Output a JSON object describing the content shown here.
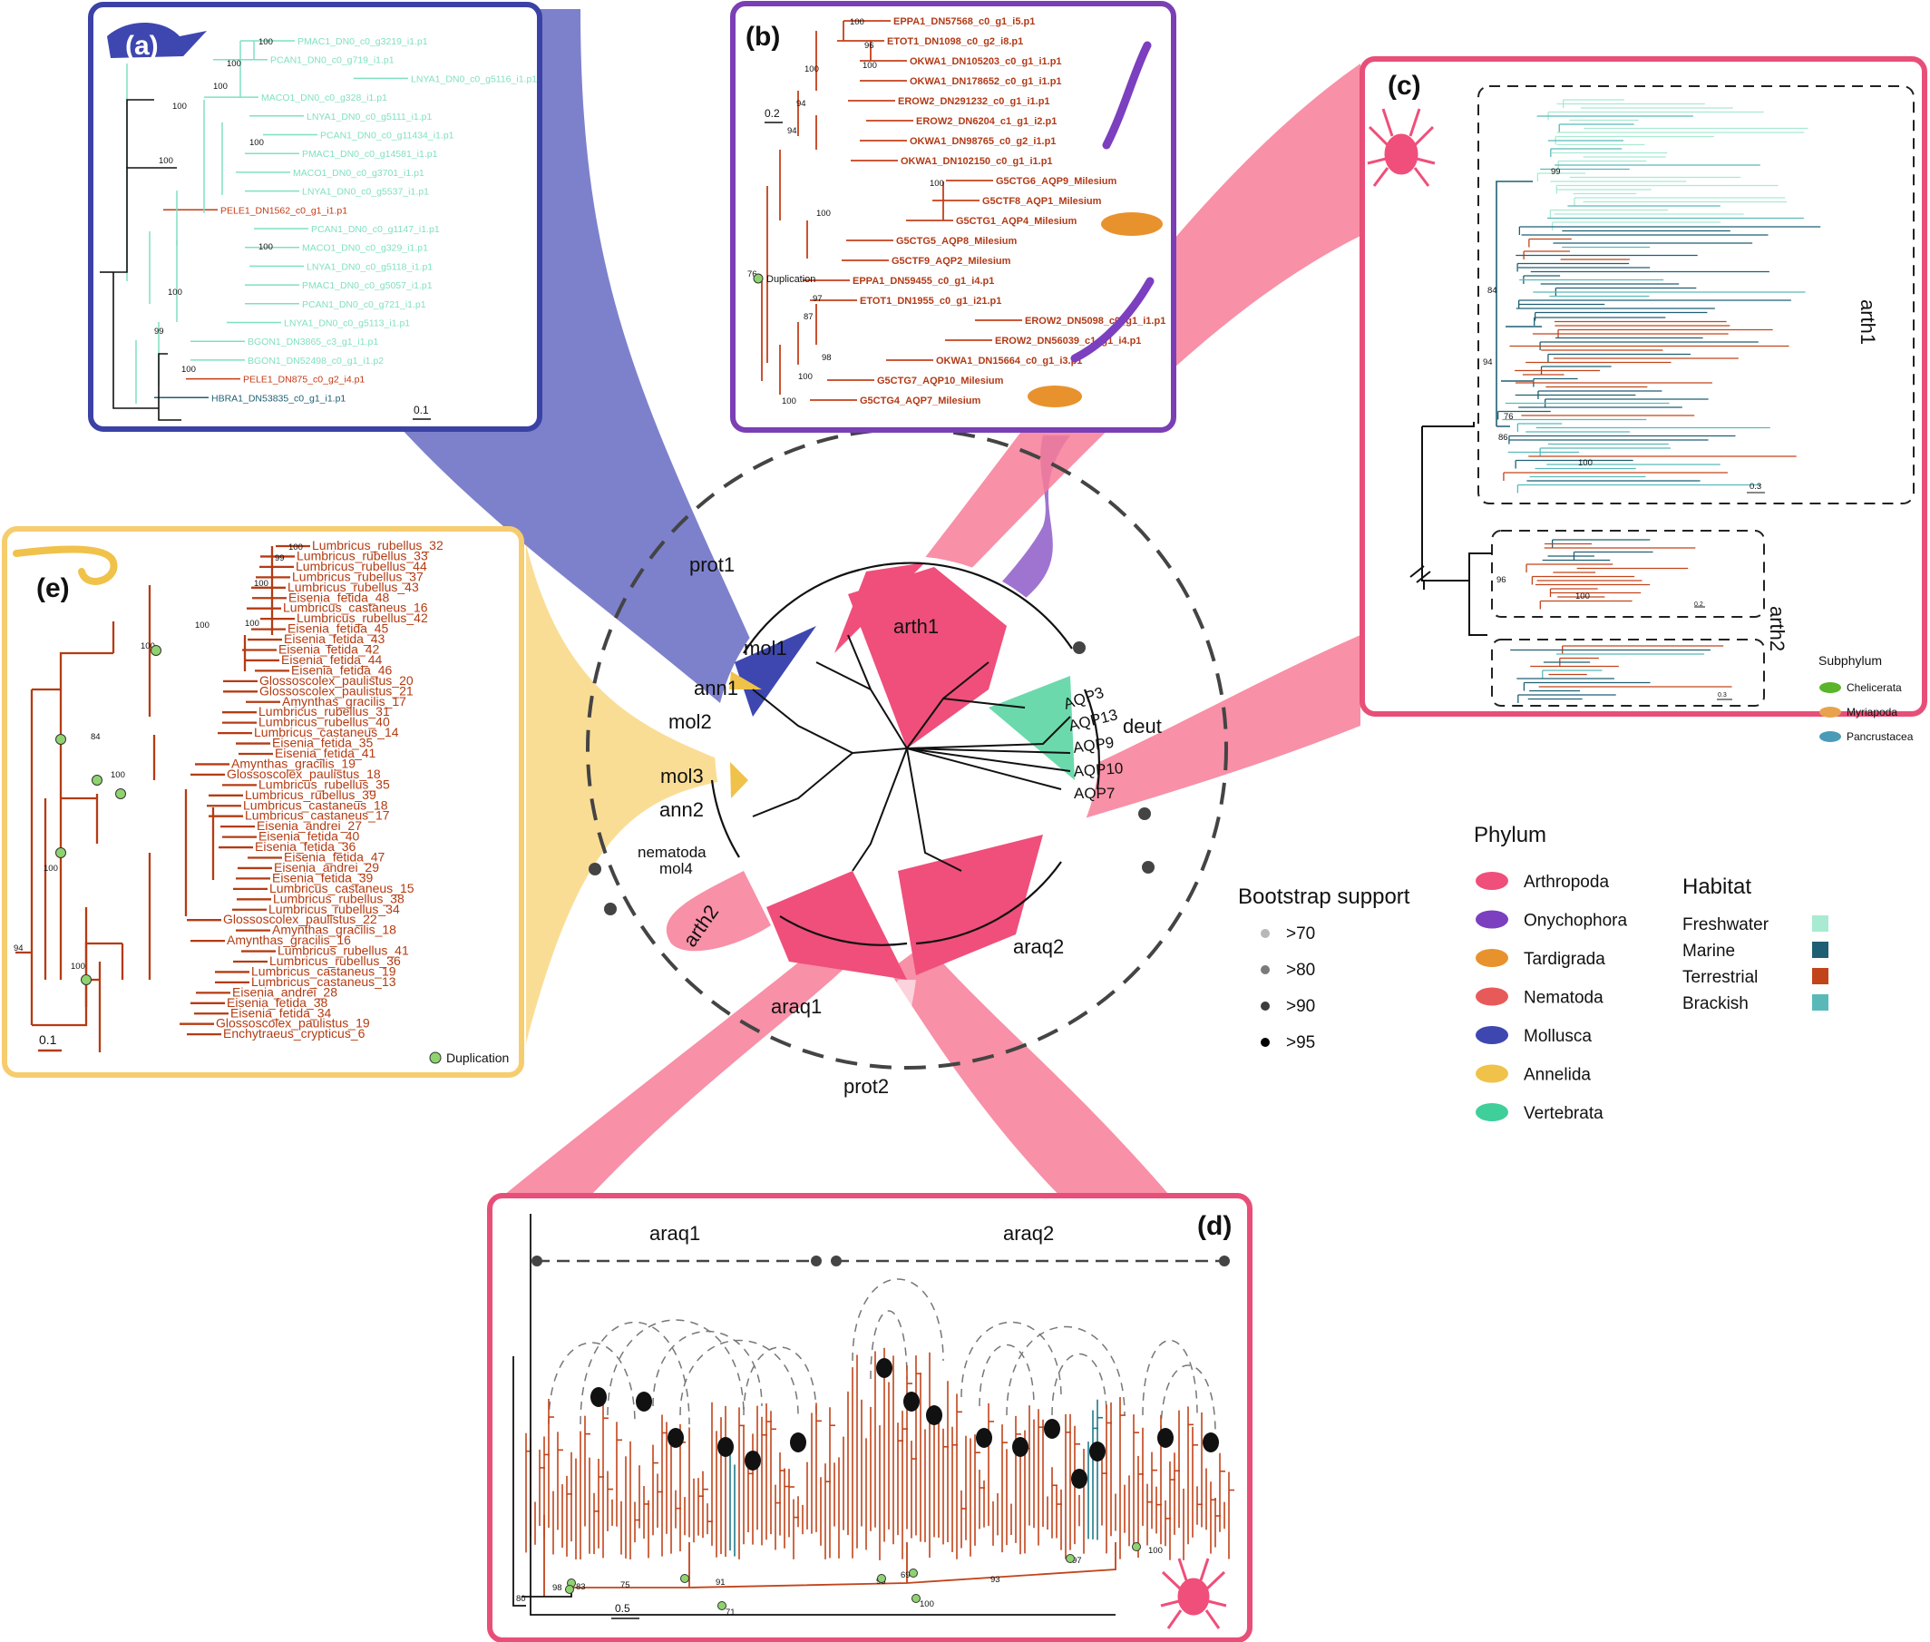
{
  "panels": {
    "a": {
      "tag": "(a)",
      "scale": "0.1",
      "tips": [
        "PMAC1_DN0_c0_g3219_i1.p1",
        "PCAN1_DN0_c0_g719_i1.p1",
        "LNYA1_DN0_c0_g5116_i1.p1",
        "MACO1_DN0_c0_g328_i1.p1",
        "LNYA1_DN0_c0_g5111_i1.p1",
        "PCAN1_DN0_c0_g11434_i1.p1",
        "PMAC1_DN0_c0_g14581_i1.p1",
        "MACO1_DN0_c0_g3701_i1.p1",
        "LNYA1_DN0_c0_g5537_i1.p1",
        "PELE1_DN1562_c0_g1_i1.p1",
        "PCAN1_DN0_c0_g1147_i1.p1",
        "MACO1_DN0_c0_g329_i1.p1",
        "LNYA1_DN0_c0_g5118_i1.p1",
        "PMAC1_DN0_c0_g5057_i1.p1",
        "PCAN1_DN0_c0_g721_i1.p1",
        "LNYA1_DN0_c0_g5113_i1.p1",
        "BGON1_DN3865_c3_g1_i1.p1",
        "BGON1_DN52498_c0_g1_i1.p2",
        "PELE1_DN875_c0_g2_i4.p1",
        "HBRA1_DN53835_c0_g1_i1.p1"
      ],
      "supports": [
        "100",
        "100",
        "100",
        "100",
        "100",
        "100",
        "100",
        "100",
        "99",
        "100"
      ]
    },
    "b": {
      "tag": "(b)",
      "scale": "0.2",
      "dup_label": "Duplication",
      "tips": [
        "EPPA1_DN57568_c0_g1_i5.p1",
        "ETOT1_DN1098_c0_g2_i8.p1",
        "OKWA1_DN105203_c0_g1_i1.p1",
        "OKWA1_DN178652_c0_g1_i1.p1",
        "EROW2_DN291232_c0_g1_i1.p1",
        "EROW2_DN6204_c1_g1_i2.p1",
        "OKWA1_DN98765_c0_g2_i1.p1",
        "OKWA1_DN102150_c0_g1_i1.p1",
        "G5CTG6_AQP9_Milesium",
        "G5CTF8_AQP1_Milesium",
        "G5CTG1_AQP4_Milesium",
        "G5CTG5_AQP8_Milesium",
        "G5CTF9_AQP2_Milesium",
        "EPPA1_DN59455_c0_g1_i4.p1",
        "ETOT1_DN1955_c0_g1_i21.p1",
        "EROW2_DN5098_c0_g1_i1.p1",
        "EROW2_DN56039_c1_g1_i4.p1",
        "OKWA1_DN15664_c0_g1_i3.p1",
        "G5CTG7_AQP10_Milesium",
        "G5CTG4_AQP7_Milesium"
      ],
      "supports": [
        "100",
        "96",
        "100",
        "100",
        "94",
        "94",
        "100",
        "100",
        "76",
        "97",
        "87",
        "98",
        "100",
        "100"
      ]
    },
    "c": {
      "tag": "(c)",
      "scale1": "0.3",
      "scale2": "0.2",
      "scale3": "0.3",
      "labels": [
        "arth1",
        "arth2"
      ],
      "supports": [
        "99",
        "84",
        "94",
        "76",
        "86",
        "100",
        "96",
        "100"
      ],
      "subphylum_title": "Subphylum",
      "subphyla": [
        "Chelicerata",
        "Myriapoda",
        "Pancrustacea"
      ],
      "subphylum_colors": [
        "#5ab52a",
        "#e8a24e",
        "#4a9bb8"
      ]
    },
    "d": {
      "tag": "(d)",
      "scale": "0.5",
      "labels": [
        "araq1",
        "araq2"
      ],
      "supports": [
        "80",
        "98",
        "83",
        "75",
        "91",
        "96",
        "69",
        "93",
        "100",
        "97",
        "100",
        "71"
      ]
    },
    "e": {
      "tag": "(e)",
      "scale": "0.1",
      "dup_label": "Duplication",
      "tips": [
        "Lumbricus_rubellus_32",
        "Lumbricus_rubellus_33",
        "Lumbricus_rubellus_44",
        "Lumbricus_rubellus_37",
        "Lumbricus_rubellus_43",
        "Eisenia_fetida_48",
        "Lumbricus_castaneus_16",
        "Lumbricus_rubellus_42",
        "Eisenia_fetida_45",
        "Eisenia_fetida_43",
        "Eisenia_fetida_42",
        "Eisenia_fetida_44",
        "Eisenia_fetida_46",
        "Glossoscolex_paulistus_20",
        "Glossoscolex_paulistus_21",
        "Amynthas_gracilis_17",
        "Lumbricus_rubellus_31",
        "Lumbricus_rubellus_40",
        "Lumbricus_castaneus_14",
        "Eisenia_fetida_35",
        "Eisenia_fetida_41",
        "Amynthas_gracilis_19",
        "Glossoscolex_paulistus_18",
        "Lumbricus_rubellus_35",
        "Lumbricus_rubellus_39",
        "Lumbricus_castaneus_18",
        "Lumbricus_castaneus_17",
        "Eisenia_andrei_27",
        "Eisenia_fetida_40",
        "Eisenia_fetida_36",
        "Eisenia_fetida_47",
        "Eisenia_andrei_29",
        "Eisenia_fetida_39",
        "Lumbricus_castaneus_15",
        "Lumbricus_rubellus_38",
        "Lumbricus_rubellus_34",
        "Glossoscolex_paulistus_22",
        "Amynthas_gracilis_18",
        "Amynthas_gracilis_16",
        "Lumbricus_rubellus_41",
        "Lumbricus_rubellus_36",
        "Lumbricus_castaneus_19",
        "Lumbricus_castaneus_13",
        "Eisenia_andrei_28",
        "Eisenia_fetida_38",
        "Eisenia_fetida_34",
        "Glossoscolex_paulistus_19",
        "Enchytraeus_crypticus_6"
      ],
      "supports": [
        "100",
        "99",
        "100",
        "100",
        "100",
        "100",
        "84",
        "100",
        "100",
        "94",
        "100"
      ]
    }
  },
  "central": {
    "outer_labels": [
      "prot1",
      "deut",
      "prot2"
    ],
    "clades": [
      "arth1",
      "mol1",
      "ann1",
      "mol2",
      "mol3",
      "ann2",
      "nematoda",
      "mol4",
      "arth2",
      "araq1",
      "araq2"
    ],
    "aqp_labels": [
      "AQP3",
      "AQP13",
      "AQP9",
      "AQP10",
      "AQP7"
    ]
  },
  "legend": {
    "bootstrap_title": "Bootstrap support",
    "bootstrap": [
      ">70",
      ">80",
      ">90",
      ">95"
    ],
    "bootstrap_colors": [
      "#b8b8b8",
      "#7a7a7a",
      "#3c3c3c",
      "#000000"
    ],
    "phylum_title": "Phylum",
    "phyla": [
      "Arthropoda",
      "Onychophora",
      "Tardigrada",
      "Nematoda",
      "Mollusca",
      "Annelida",
      "Vertebrata"
    ],
    "phylum_colors": [
      "#ef4f7a",
      "#7b3fbf",
      "#e8922e",
      "#e85a5a",
      "#3e47b0",
      "#f0c24a",
      "#3fcf9b"
    ],
    "habitat_title": "Habitat",
    "habitats": [
      "Freshwater",
      "Marine",
      "Terrestrial",
      "Brackish"
    ],
    "habitat_colors": [
      "#a8ead2",
      "#1f5f73",
      "#c2441a",
      "#59b9b9"
    ]
  },
  "colors": {
    "panel_a": "#3b42a6",
    "panel_b": "#7b3fb5",
    "panel_cd": "#e84f78",
    "panel_e": "#f6cd6e"
  }
}
